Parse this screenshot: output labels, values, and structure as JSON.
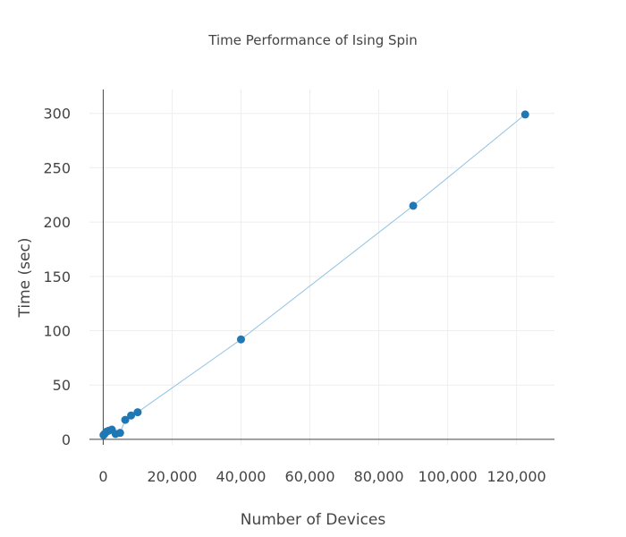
{
  "chart_data": {
    "type": "scatter",
    "mode": "lines+markers",
    "title": "Time Performance of Ising Spin",
    "xlabel": "Number of Devices",
    "ylabel": "Time (sec)",
    "xlim": [
      -4000,
      131000
    ],
    "ylim": [
      -5,
      322
    ],
    "x_ticks": [
      0,
      20000,
      40000,
      60000,
      80000,
      100000,
      120000
    ],
    "x_tick_labels": [
      "0",
      "20,000",
      "40,000",
      "60,000",
      "80,000",
      "100,000",
      "120,000"
    ],
    "y_ticks": [
      0,
      50,
      100,
      150,
      200,
      250,
      300
    ],
    "y_tick_labels": [
      "0",
      "50",
      "100",
      "150",
      "200",
      "250",
      "300"
    ],
    "grid": true,
    "series": [
      {
        "marker_color": "#1f77b4",
        "line_color": "#8fc1e3",
        "x": [
          100,
          400,
          900,
          1600,
          2500,
          3600,
          4900,
          6400,
          8100,
          10000,
          40000,
          90000,
          122500
        ],
        "y": [
          4,
          5,
          7,
          8,
          9,
          5,
          6,
          18,
          22,
          25,
          92,
          215,
          299
        ]
      }
    ]
  }
}
